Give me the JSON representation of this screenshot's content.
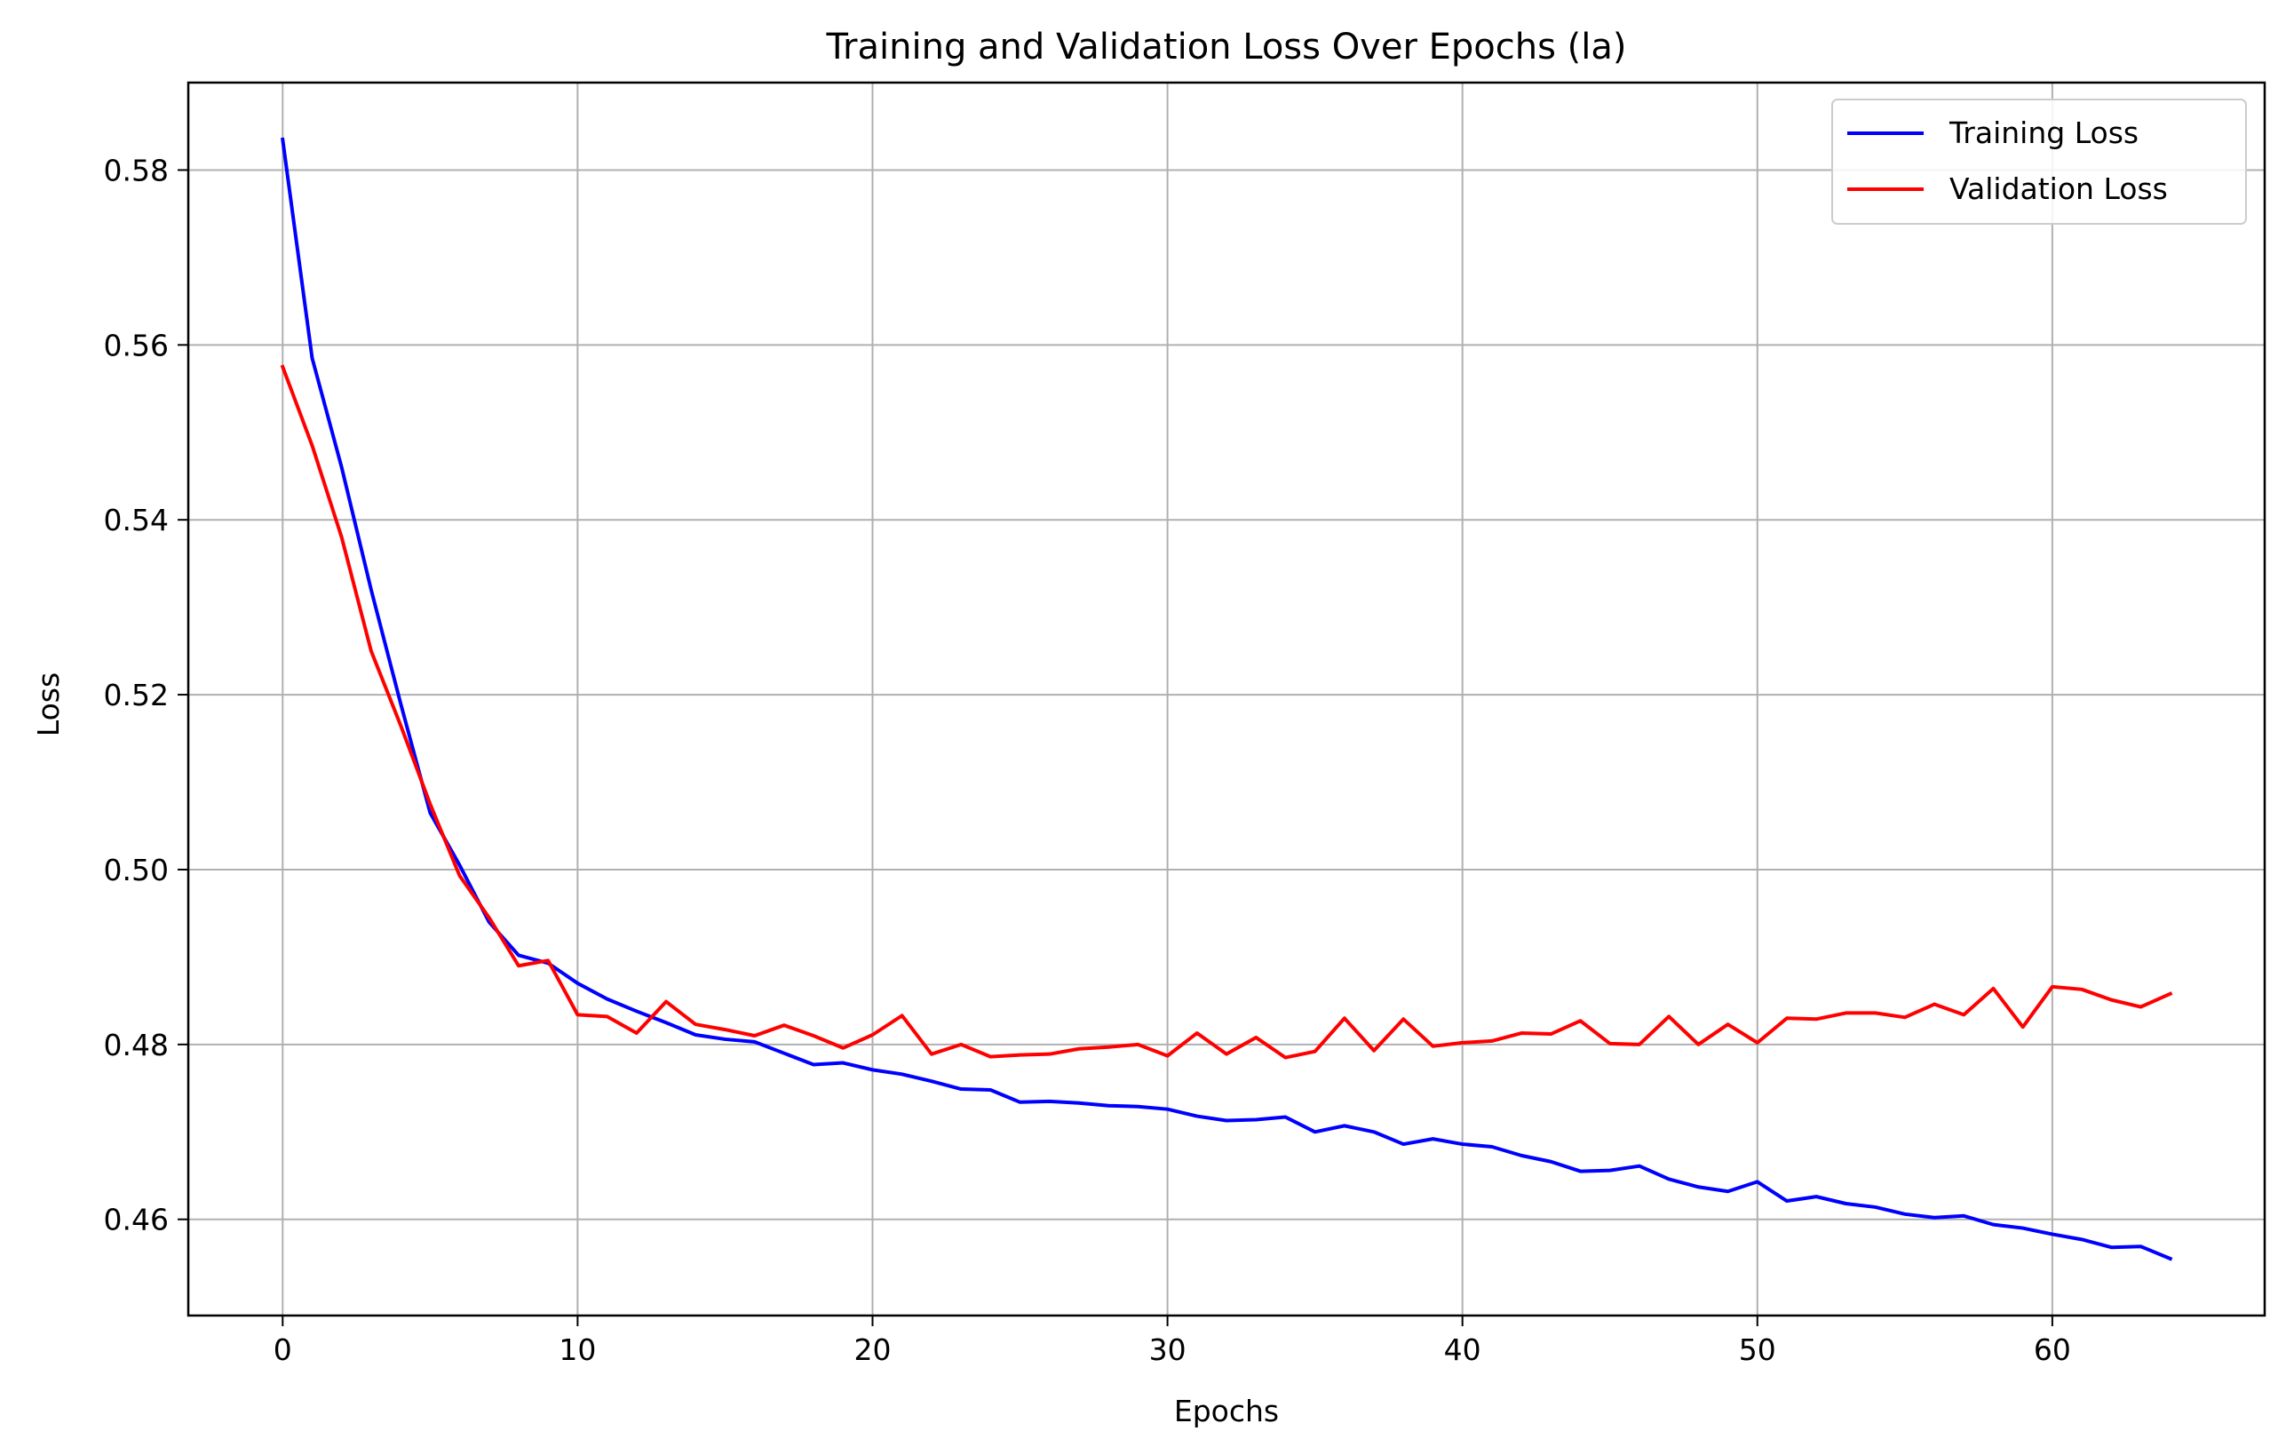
{
  "chart_data": {
    "type": "line",
    "title": "Training and Validation Loss Over Epochs (la)",
    "xlabel": "Epochs",
    "ylabel": "Loss",
    "xlim": [
      -3.2,
      67.2
    ],
    "ylim": [
      0.449,
      0.59
    ],
    "xticks": [
      0,
      10,
      20,
      30,
      40,
      50,
      60
    ],
    "yticks": [
      0.46,
      0.48,
      0.5,
      0.52,
      0.54,
      0.56,
      0.58
    ],
    "xtick_labels": [
      "0",
      "10",
      "20",
      "30",
      "40",
      "50",
      "60"
    ],
    "ytick_labels": [
      "0.46",
      "0.48",
      "0.50",
      "0.52",
      "0.54",
      "0.56",
      "0.58"
    ],
    "grid": true,
    "legend_position": "top-right",
    "series": [
      {
        "name": "Training Loss",
        "color": "#0000ff",
        "values": [
          0.5835,
          0.5585,
          0.546,
          0.532,
          0.519,
          0.5065,
          0.5005,
          0.494,
          0.4902,
          0.4893,
          0.487,
          0.4852,
          0.4838,
          0.4825,
          0.4811,
          0.4806,
          0.4803,
          0.479,
          0.4777,
          0.4779,
          0.4771,
          0.4766,
          0.4758,
          0.4749,
          0.4748,
          0.4734,
          0.4735,
          0.4733,
          0.473,
          0.4729,
          0.4726,
          0.4718,
          0.4713,
          0.4714,
          0.4717,
          0.47,
          0.4707,
          0.47,
          0.4686,
          0.4692,
          0.4686,
          0.4683,
          0.4673,
          0.4666,
          0.4655,
          0.4656,
          0.4661,
          0.4646,
          0.4637,
          0.4632,
          0.4643,
          0.4621,
          0.4626,
          0.4618,
          0.4614,
          0.4606,
          0.4602,
          0.4604,
          0.4594,
          0.459,
          0.4583,
          0.4577,
          0.4568,
          0.4569,
          0.4555
        ]
      },
      {
        "name": "Validation Loss",
        "color": "#ff0000",
        "values": [
          0.5575,
          0.5485,
          0.538,
          0.525,
          0.5165,
          0.5075,
          0.4993,
          0.4945,
          0.489,
          0.4896,
          0.4834,
          0.4832,
          0.4813,
          0.4849,
          0.4823,
          0.4817,
          0.481,
          0.4822,
          0.481,
          0.4796,
          0.4811,
          0.4833,
          0.4789,
          0.48,
          0.4786,
          0.4788,
          0.4789,
          0.4795,
          0.4797,
          0.48,
          0.4787,
          0.4813,
          0.4789,
          0.4808,
          0.4785,
          0.4792,
          0.483,
          0.4793,
          0.4829,
          0.4798,
          0.4802,
          0.4804,
          0.4813,
          0.4812,
          0.4827,
          0.4801,
          0.48,
          0.4832,
          0.48,
          0.4823,
          0.4802,
          0.483,
          0.4829,
          0.4836,
          0.4836,
          0.4831,
          0.4846,
          0.4834,
          0.4864,
          0.482,
          0.4866,
          0.4863,
          0.4851,
          0.4843,
          0.4858
        ]
      }
    ]
  }
}
